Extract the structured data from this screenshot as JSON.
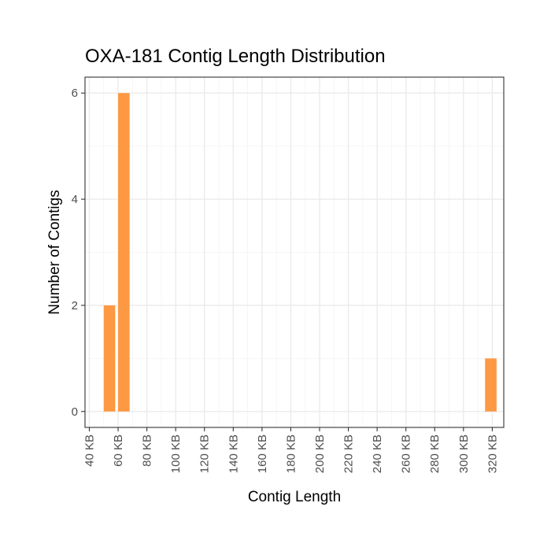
{
  "chart_data": {
    "type": "bar",
    "title": "OXA-181 Contig Length Distribution",
    "xlabel": "Contig Length",
    "ylabel": "Number of Contigs",
    "x_unit": "KB",
    "x_ticks": [
      {
        "value": 40,
        "label": "40 KB"
      },
      {
        "value": 60,
        "label": "60 KB"
      },
      {
        "value": 80,
        "label": "80 KB"
      },
      {
        "value": 100,
        "label": "100 KB"
      },
      {
        "value": 120,
        "label": "120 KB"
      },
      {
        "value": 140,
        "label": "140 KB"
      },
      {
        "value": 160,
        "label": "160 KB"
      },
      {
        "value": 180,
        "label": "180 KB"
      },
      {
        "value": 200,
        "label": "200 KB"
      },
      {
        "value": 220,
        "label": "220 KB"
      },
      {
        "value": 240,
        "label": "240 KB"
      },
      {
        "value": 260,
        "label": "260 KB"
      },
      {
        "value": 280,
        "label": "280 KB"
      },
      {
        "value": 300,
        "label": "300 KB"
      },
      {
        "value": 320,
        "label": "320 KB"
      }
    ],
    "y_ticks": [
      0,
      2,
      4,
      6
    ],
    "xlim": [
      37,
      328
    ],
    "ylim": [
      -0.3,
      6.3
    ],
    "bin_width": 8,
    "bars": [
      {
        "bin_start": 50,
        "bin_end": 58,
        "count": 2
      },
      {
        "bin_start": 60,
        "bin_end": 68,
        "count": 6
      },
      {
        "bin_start": 315,
        "bin_end": 323,
        "count": 1
      }
    ],
    "bar_color": "#FD9843",
    "grid": true,
    "legend": "none"
  }
}
